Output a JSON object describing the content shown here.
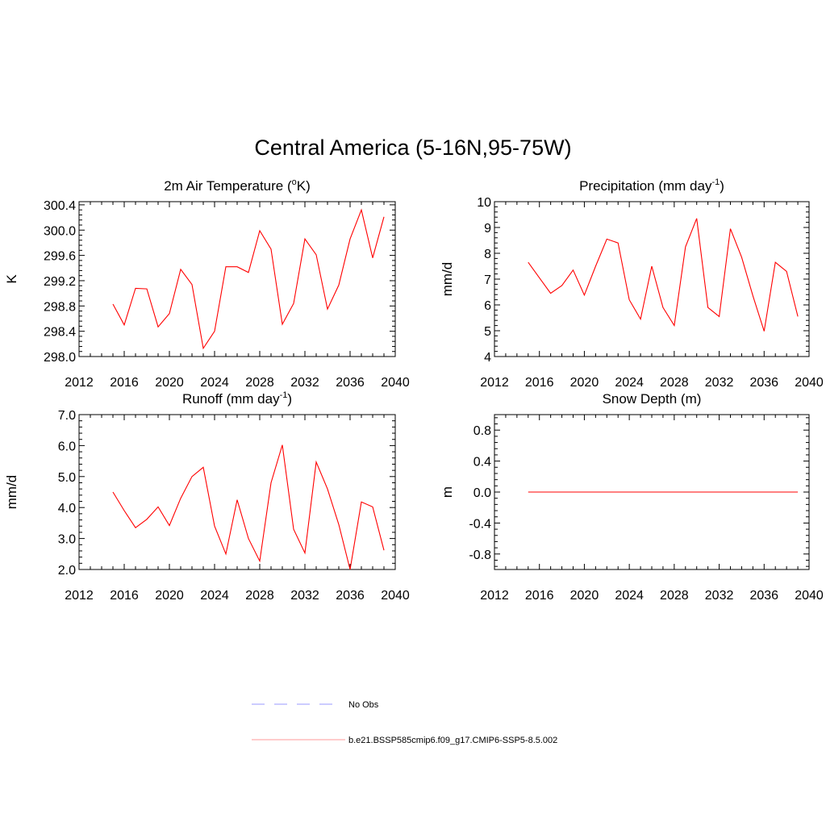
{
  "title": "Central America (5-16N,95-75W)",
  "colors": {
    "model_line": "#ff0000",
    "obs_line": "#9999ff",
    "legend_model": "#ff9999"
  },
  "legend": {
    "obs_label": "No Obs",
    "model_label": "b.e21.BSSP585cmip6.f09_g17.CMIP6-SSP5-8.5.002"
  },
  "chart_data": [
    {
      "type": "line",
      "title": "2m Air Temperature (°K)",
      "title_main": "2m Air Temperature (",
      "title_sup": "o",
      "title_end": "K)",
      "ylabel": "K",
      "xlim": [
        2012,
        2040
      ],
      "xticks": [
        2012,
        2016,
        2020,
        2024,
        2028,
        2032,
        2036,
        2040
      ],
      "ylim": [
        298.0,
        300.45
      ],
      "yticks": [
        298.0,
        298.4,
        298.8,
        299.2,
        299.6,
        300.0,
        300.4
      ],
      "ytick_labels": [
        "298.0",
        "298.4",
        "298.8",
        "299.2",
        "299.6",
        "300.0",
        "300.4"
      ],
      "series": [
        {
          "name": "b.e21.BSSP585cmip6.f09_g17.CMIP6-SSP5-8.5.002",
          "x": [
            2015,
            2016,
            2017,
            2018,
            2019,
            2020,
            2021,
            2022,
            2023,
            2024,
            2025,
            2026,
            2027,
            2028,
            2029,
            2030,
            2031,
            2032,
            2033,
            2034,
            2035,
            2036,
            2037,
            2038,
            2039
          ],
          "y": [
            298.83,
            298.5,
            299.08,
            299.07,
            298.47,
            298.68,
            299.38,
            299.14,
            298.13,
            298.4,
            299.42,
            299.42,
            299.33,
            299.99,
            299.7,
            298.51,
            298.84,
            299.86,
            299.61,
            298.75,
            299.13,
            299.86,
            300.32,
            299.56,
            300.21
          ]
        }
      ]
    },
    {
      "type": "line",
      "title": "Precipitation (mm day-1)",
      "title_main": "Precipitation (mm day",
      "title_sup": "-1",
      "title_end": ")",
      "ylabel": "mm/d",
      "xlim": [
        2012,
        2040
      ],
      "xticks": [
        2012,
        2016,
        2020,
        2024,
        2028,
        2032,
        2036,
        2040
      ],
      "ylim": [
        4,
        10
      ],
      "yticks": [
        4,
        5,
        6,
        7,
        8,
        9,
        10
      ],
      "ytick_labels": [
        "4",
        "5",
        "6",
        "7",
        "8",
        "9",
        "10"
      ],
      "series": [
        {
          "name": "b.e21.BSSP585cmip6.f09_g17.CMIP6-SSP5-8.5.002",
          "x": [
            2015,
            2016,
            2017,
            2018,
            2019,
            2020,
            2021,
            2022,
            2023,
            2024,
            2025,
            2026,
            2027,
            2028,
            2029,
            2030,
            2031,
            2032,
            2033,
            2034,
            2035,
            2036,
            2037,
            2038,
            2039
          ],
          "y": [
            7.65,
            7.05,
            6.45,
            6.75,
            7.35,
            6.38,
            7.5,
            8.55,
            8.4,
            6.2,
            5.45,
            7.5,
            5.9,
            5.2,
            8.25,
            9.35,
            5.9,
            5.55,
            8.95,
            7.85,
            6.35,
            4.98,
            7.65,
            7.3,
            5.55
          ]
        }
      ]
    },
    {
      "type": "line",
      "title": "Runoff (mm day-1)",
      "title_main": "Runoff (mm day",
      "title_sup": "-1",
      "title_end": ")",
      "ylabel": "mm/d",
      "xlim": [
        2012,
        2040
      ],
      "xticks": [
        2012,
        2016,
        2020,
        2024,
        2028,
        2032,
        2036,
        2040
      ],
      "ylim": [
        2.0,
        7.0
      ],
      "yticks": [
        2.0,
        3.0,
        4.0,
        5.0,
        6.0,
        7.0
      ],
      "ytick_labels": [
        "2.0",
        "3.0",
        "4.0",
        "5.0",
        "6.0",
        "7.0"
      ],
      "series": [
        {
          "name": "b.e21.BSSP585cmip6.f09_g17.CMIP6-SSP5-8.5.002",
          "x": [
            2015,
            2016,
            2017,
            2018,
            2019,
            2020,
            2021,
            2022,
            2023,
            2024,
            2025,
            2026,
            2027,
            2028,
            2029,
            2030,
            2031,
            2032,
            2033,
            2034,
            2035,
            2036,
            2037,
            2038,
            2039
          ],
          "y": [
            4.5,
            3.9,
            3.35,
            3.62,
            4.02,
            3.42,
            4.3,
            5.0,
            5.3,
            3.4,
            2.5,
            4.25,
            3.0,
            2.27,
            4.8,
            6.02,
            3.3,
            2.53,
            5.47,
            4.6,
            3.45,
            2.0,
            4.18,
            4.02,
            2.62
          ]
        }
      ]
    },
    {
      "type": "line",
      "title": "Snow Depth (m)",
      "title_main": "Snow Depth (m)",
      "title_sup": "",
      "title_end": "",
      "ylabel": "m",
      "xlim": [
        2012,
        2040
      ],
      "xticks": [
        2012,
        2016,
        2020,
        2024,
        2028,
        2032,
        2036,
        2040
      ],
      "ylim": [
        -1.0,
        1.0
      ],
      "yticks": [
        -0.8,
        -0.4,
        0.0,
        0.4,
        0.8
      ],
      "ytick_labels": [
        "-0.8",
        "-0.4",
        "0.0",
        "0.4",
        "0.8"
      ],
      "series": [
        {
          "name": "b.e21.BSSP585cmip6.f09_g17.CMIP6-SSP5-8.5.002",
          "x": [
            2015,
            2039
          ],
          "y": [
            0.0,
            0.0
          ]
        }
      ]
    }
  ]
}
